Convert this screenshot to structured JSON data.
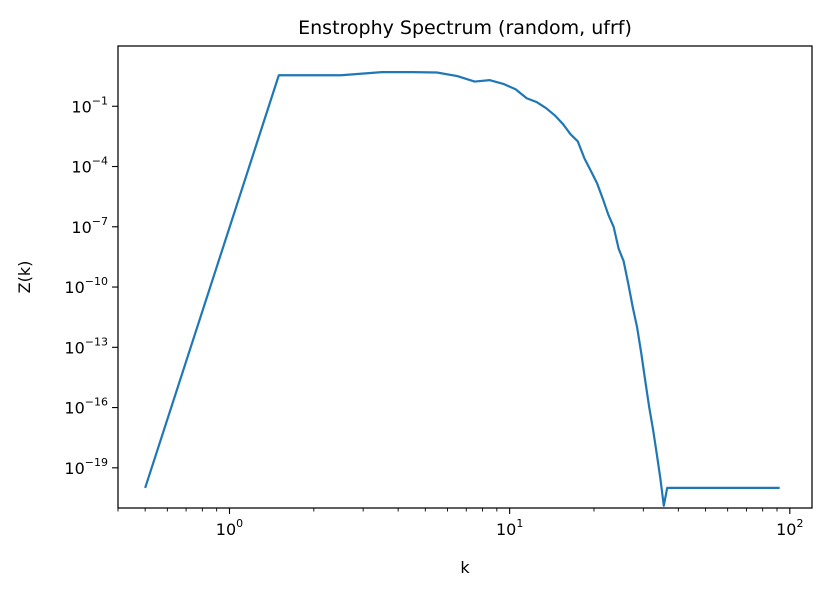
{
  "chart_data": {
    "type": "line",
    "title": "Enstrophy Spectrum (random, ufrf)",
    "xlabel": "k",
    "ylabel": "Z(k)",
    "xscale": "log",
    "yscale": "log",
    "xlim": [
      0.4,
      120
    ],
    "ylim": [
      1e-21,
      100.0
    ],
    "grid": false,
    "legend": "none",
    "xticks": [
      {
        "value": 1,
        "base": "10",
        "exp": "0"
      },
      {
        "value": 10,
        "base": "10",
        "exp": "1"
      },
      {
        "value": 100,
        "base": "10",
        "exp": "2"
      }
    ],
    "yticks": [
      {
        "value": 0.1,
        "base": "10",
        "exp": "−1"
      },
      {
        "value": 0.0001,
        "base": "10",
        "exp": "−4"
      },
      {
        "value": 1e-07,
        "base": "10",
        "exp": "−7"
      },
      {
        "value": 1e-10,
        "base": "10",
        "exp": "−10"
      },
      {
        "value": 1e-13,
        "base": "10",
        "exp": "−13"
      },
      {
        "value": 1e-16,
        "base": "10",
        "exp": "−16"
      },
      {
        "value": 1e-19,
        "base": "10",
        "exp": "−19"
      }
    ],
    "series": [
      {
        "color": "#1f77b4",
        "x": [
          0.5,
          1.5,
          2.5,
          3.5,
          4.5,
          5.5,
          6.5,
          7.5,
          8.5,
          9.5,
          10.5,
          11.5,
          12.5,
          13.5,
          14.5,
          15.5,
          16.5,
          17.5,
          18.5,
          19.5,
          20.5,
          21.5,
          22.5,
          23.5,
          24.5,
          25.5,
          26.5,
          27.5,
          28.5,
          29.5,
          30.5,
          31.5,
          32.5,
          33.5,
          34.5,
          35.5,
          36.5,
          37.5,
          38.5,
          39.5,
          40.5,
          41.5,
          42.5,
          43.5,
          44.5,
          45.5,
          46.5,
          50,
          60,
          70,
          80,
          92
        ],
        "y": [
          1e-20,
          3.5,
          3.5,
          5.0,
          5.0,
          4.8,
          3.2,
          1.7,
          2.0,
          1.3,
          0.7,
          0.25,
          0.16,
          0.08,
          0.035,
          0.013,
          0.004,
          0.0018,
          0.00025,
          6e-05,
          1.5e-05,
          2.5e-06,
          4e-07,
          1e-07,
          8e-09,
          2e-09,
          1.5e-10,
          1e-11,
          1e-12,
          5e-14,
          2e-15,
          1e-16,
          8e-18,
          5e-19,
          3e-20,
          1.3e-21,
          1e-20,
          1e-20,
          1e-20,
          1e-20,
          1e-20,
          1e-20,
          1e-20,
          1e-20,
          1e-20,
          1e-20,
          1e-20,
          1e-20,
          1e-20,
          1e-20,
          1e-20,
          1e-20
        ]
      }
    ]
  }
}
